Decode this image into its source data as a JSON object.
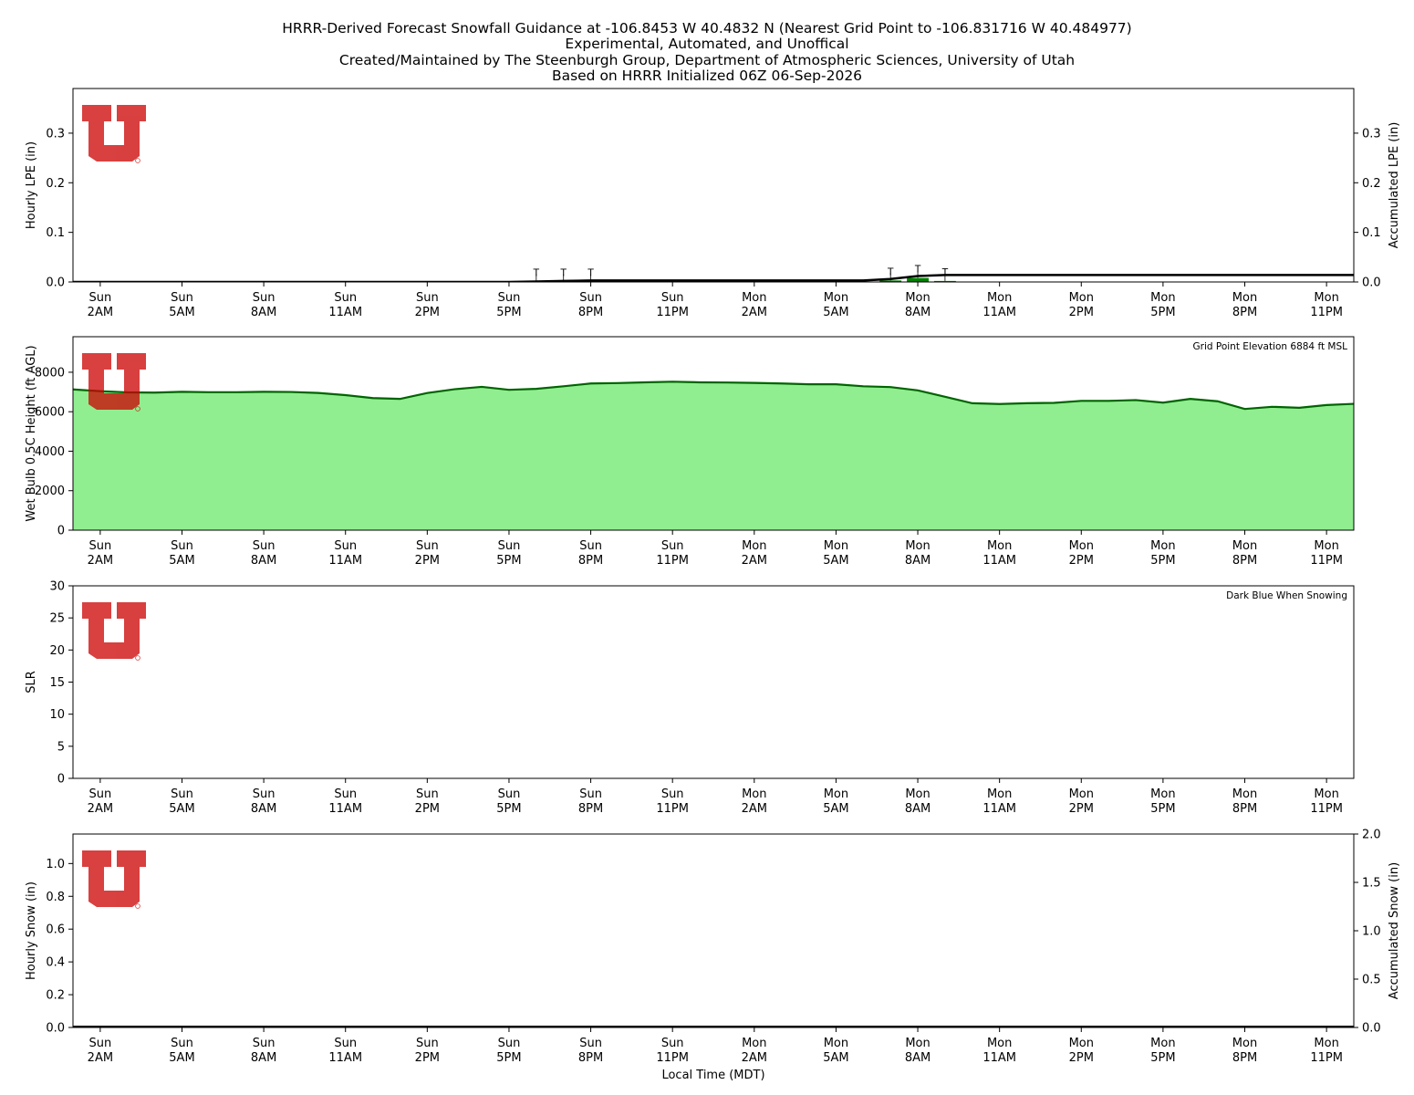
{
  "title_lines": [
    "HRRR-Derived Forecast Snowfall Guidance at -106.8453 W 40.4832 N (Nearest Grid Point to -106.831716 W 40.484977)",
    "Experimental, Automated, and Unoffical",
    "Created/Maintained by The Steenburgh Group, Department of Atmospheric Sciences, University of Utah",
    "Based on HRRR Initialized 06Z 06-Sep-2026"
  ],
  "xlabel": "Local Time (MDT)",
  "x_ticks": [
    {
      "hour": 2,
      "day": "Sun",
      "time": "2AM"
    },
    {
      "hour": 5,
      "day": "Sun",
      "time": "5AM"
    },
    {
      "hour": 8,
      "day": "Sun",
      "time": "8AM"
    },
    {
      "hour": 11,
      "day": "Sun",
      "time": "11AM"
    },
    {
      "hour": 14,
      "day": "Sun",
      "time": "2PM"
    },
    {
      "hour": 17,
      "day": "Sun",
      "time": "5PM"
    },
    {
      "hour": 20,
      "day": "Sun",
      "time": "8PM"
    },
    {
      "hour": 23,
      "day": "Sun",
      "time": "11PM"
    },
    {
      "hour": 26,
      "day": "Mon",
      "time": "2AM"
    },
    {
      "hour": 29,
      "day": "Mon",
      "time": "5AM"
    },
    {
      "hour": 32,
      "day": "Mon",
      "time": "8AM"
    },
    {
      "hour": 35,
      "day": "Mon",
      "time": "11AM"
    },
    {
      "hour": 38,
      "day": "Mon",
      "time": "2PM"
    },
    {
      "hour": 41,
      "day": "Mon",
      "time": "5PM"
    },
    {
      "hour": 44,
      "day": "Mon",
      "time": "8PM"
    },
    {
      "hour": 47,
      "day": "Mon",
      "time": "11PM"
    }
  ],
  "xlim": [
    1,
    48
  ],
  "logo": {
    "description": "University of Utah block U",
    "color": "#cc0000"
  },
  "chart_data": [
    {
      "id": "lpe",
      "type": "bar",
      "ylabel": "Hourly LPE (in)",
      "ylabel_right": "Accumulated LPE (in)",
      "ylim": [
        0,
        0.39
      ],
      "yticks": [
        0.0,
        0.1,
        0.2,
        0.3
      ],
      "yticks_right": [
        0.0,
        0.1,
        0.2,
        0.3
      ],
      "bar_color": "#008000",
      "line_color": "#000000",
      "hours": [
        1,
        2,
        3,
        4,
        5,
        6,
        7,
        8,
        9,
        10,
        11,
        12,
        13,
        14,
        15,
        16,
        17,
        18,
        19,
        20,
        21,
        22,
        23,
        24,
        25,
        26,
        27,
        28,
        29,
        30,
        31,
        32,
        33,
        34,
        35,
        36,
        37,
        38,
        39,
        40,
        41,
        42,
        43,
        44,
        45,
        46,
        47,
        48
      ],
      "hourly": [
        0,
        0,
        0,
        0,
        0,
        0,
        0,
        0,
        0,
        0,
        0,
        0,
        0,
        0,
        0,
        0,
        0,
        0.001,
        0.001,
        0.001,
        0,
        0,
        0,
        0,
        0,
        0,
        0,
        0,
        0,
        0,
        0.003,
        0.008,
        0.002,
        0,
        0,
        0,
        0,
        0,
        0,
        0,
        0,
        0,
        0,
        0,
        0,
        0,
        0,
        0
      ],
      "accumulated": [
        0,
        0,
        0,
        0,
        0,
        0,
        0,
        0,
        0,
        0,
        0,
        0,
        0,
        0,
        0,
        0,
        0,
        0.001,
        0.002,
        0.003,
        0.003,
        0.003,
        0.003,
        0.003,
        0.003,
        0.003,
        0.003,
        0.003,
        0.003,
        0.003,
        0.006,
        0.012,
        0.014,
        0.014,
        0.014,
        0.014,
        0.014,
        0.014,
        0.014,
        0.014,
        0.014,
        0.014,
        0.014,
        0.014,
        0.014,
        0.014,
        0.014,
        0.014
      ],
      "trace_label": "T",
      "trace_hours": [
        18,
        19,
        20,
        31,
        32,
        33
      ]
    },
    {
      "id": "wetbulb",
      "type": "area",
      "ylabel": "Wet Bulb 0.5C Height (ft AGL)",
      "annotation": "Grid Point Elevation 6884 ft MSL",
      "ylim": [
        0,
        9800
      ],
      "yticks": [
        0,
        2000,
        4000,
        6000,
        8000
      ],
      "fill_color": "#90ee90",
      "line_color": "#006400",
      "hours": [
        1,
        2,
        3,
        4,
        5,
        6,
        7,
        8,
        9,
        10,
        11,
        12,
        13,
        14,
        15,
        16,
        17,
        18,
        19,
        20,
        21,
        22,
        23,
        24,
        25,
        26,
        27,
        28,
        29,
        30,
        31,
        32,
        33,
        34,
        35,
        36,
        37,
        38,
        39,
        40,
        41,
        42,
        43,
        44,
        45,
        46,
        47,
        48
      ],
      "values": [
        7130,
        7040,
        6980,
        6970,
        7010,
        6990,
        6990,
        7010,
        7000,
        6950,
        6840,
        6690,
        6650,
        6950,
        7140,
        7260,
        7110,
        7160,
        7290,
        7430,
        7450,
        7490,
        7520,
        7490,
        7480,
        7460,
        7430,
        7390,
        7390,
        7290,
        7250,
        7080,
        6760,
        6430,
        6390,
        6430,
        6450,
        6550,
        6550,
        6590,
        6460,
        6650,
        6530,
        6140,
        6250,
        6200,
        6340,
        6400
      ]
    },
    {
      "id": "slr",
      "type": "line",
      "ylabel": "SLR",
      "annotation": "Dark Blue When Snowing",
      "ylim": [
        0,
        30
      ],
      "yticks": [
        0,
        5,
        10,
        15,
        20,
        25,
        30
      ],
      "values": []
    },
    {
      "id": "snow",
      "type": "bar",
      "ylabel": "Hourly Snow (in)",
      "ylabel_right": "Accumulated Snow (in)",
      "ylim": [
        0,
        1.18
      ],
      "ylim_right": [
        0,
        2.0
      ],
      "yticks": [
        0.0,
        0.2,
        0.4,
        0.6,
        0.8,
        1.0
      ],
      "yticks_right": [
        0.0,
        0.5,
        1.0,
        1.5,
        2.0
      ],
      "hourly": [],
      "accumulated": [
        0,
        0,
        0,
        0,
        0,
        0,
        0,
        0,
        0,
        0,
        0,
        0,
        0,
        0,
        0,
        0,
        0,
        0,
        0,
        0,
        0,
        0,
        0,
        0,
        0,
        0,
        0,
        0,
        0,
        0,
        0,
        0,
        0,
        0,
        0,
        0,
        0,
        0,
        0,
        0,
        0,
        0,
        0,
        0,
        0,
        0,
        0,
        0
      ]
    }
  ]
}
